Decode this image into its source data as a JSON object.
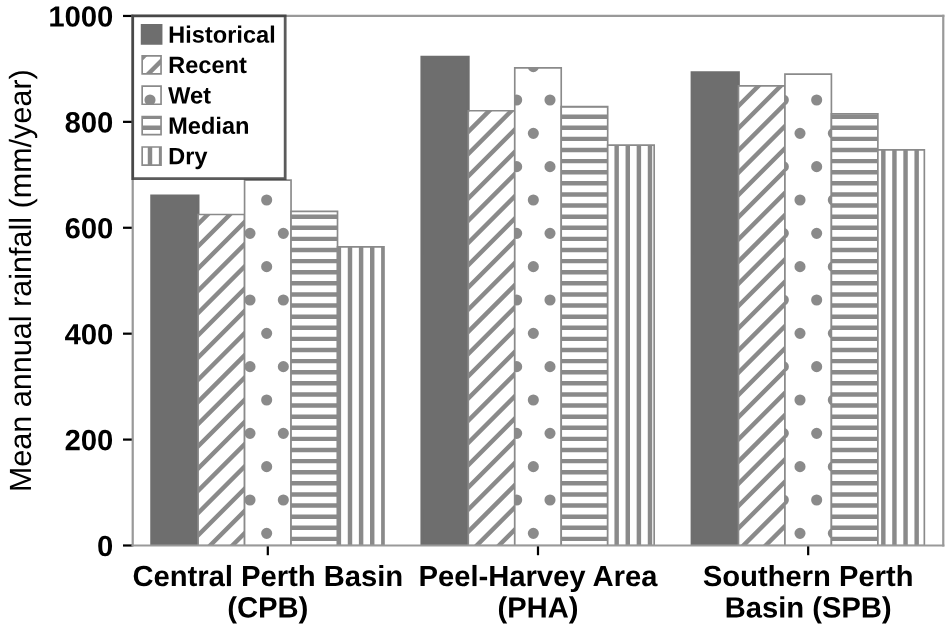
{
  "chart_data": {
    "type": "bar",
    "ylabel": "Mean annual rainfall (mm/year)",
    "categories": [
      "Central Perth Basin\n(CPB)",
      "Peel-Harvey Area\n(PHA)",
      "Southern Perth\nBasin (SPB)"
    ],
    "series": [
      {
        "name": "Historical",
        "color": "#6e6e6e",
        "values": [
          660,
          922,
          893
        ]
      },
      {
        "name": "Recent",
        "color": "#8a8a8a",
        "values": [
          625,
          821,
          868
        ]
      },
      {
        "name": "Wet",
        "color": "#8a8a8a",
        "values": [
          690,
          902,
          890
        ]
      },
      {
        "name": "Median",
        "color": "#8a8a8a",
        "values": [
          631,
          829,
          815
        ]
      },
      {
        "name": "Dry",
        "color": "#8a8a8a",
        "values": [
          564,
          756,
          747
        ]
      }
    ],
    "ylim": [
      0,
      1000
    ],
    "yticks": [
      0,
      200,
      400,
      600,
      800,
      1000
    ],
    "grid": false,
    "legend": "top left"
  }
}
